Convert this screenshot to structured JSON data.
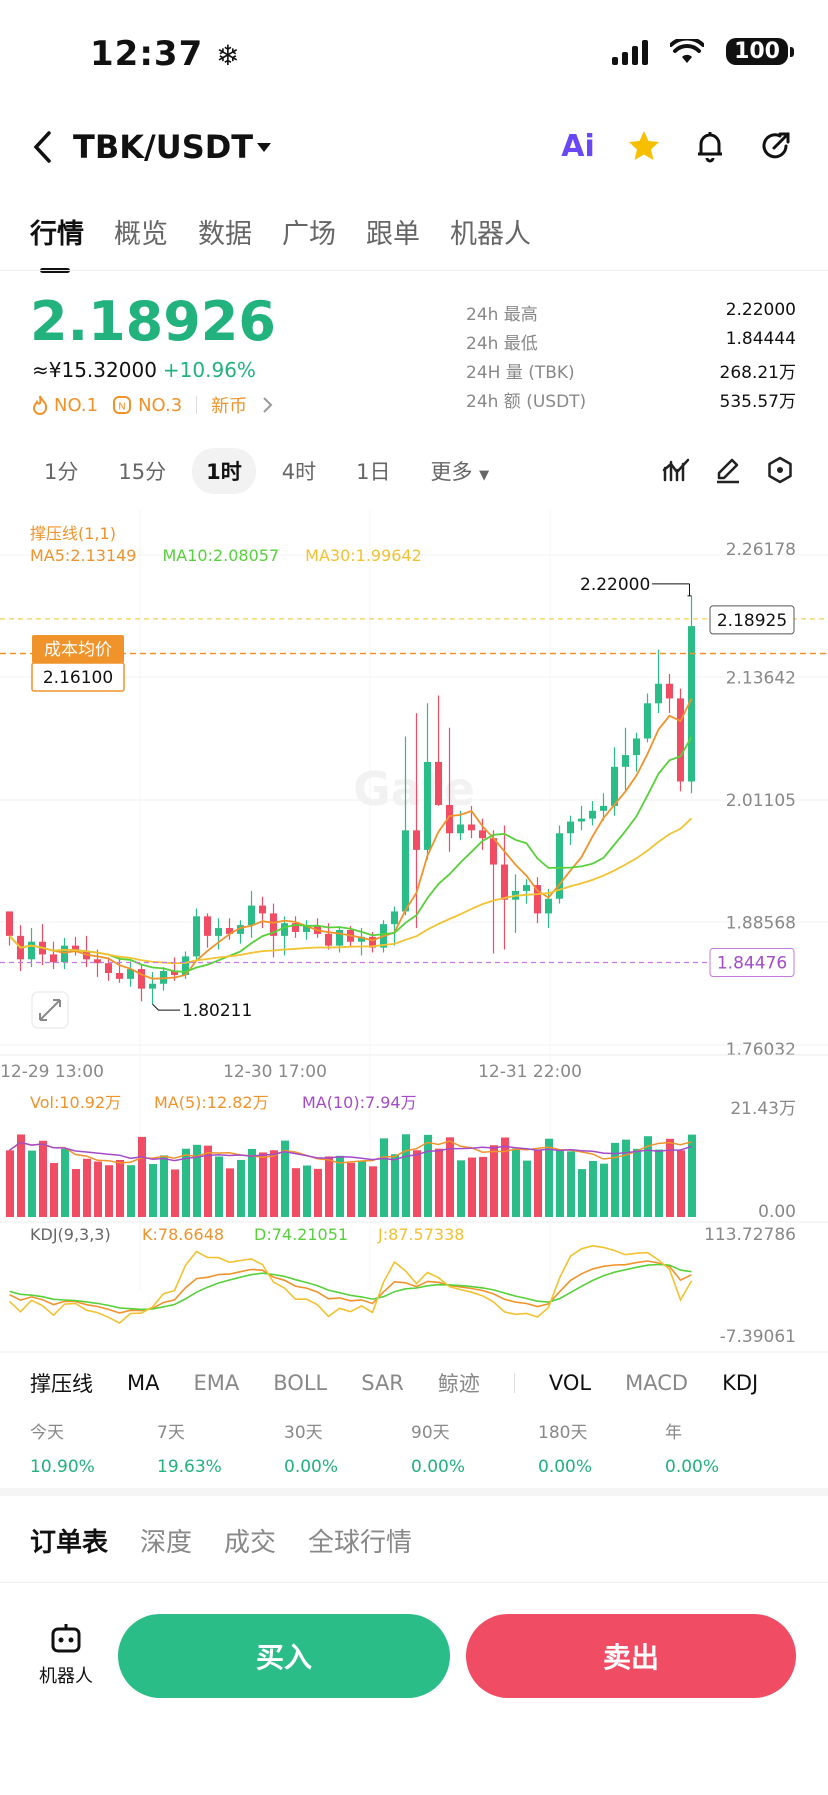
{
  "status_bar": {
    "time": "12:37",
    "battery": "100",
    "snow_icon": "snowflake-icon"
  },
  "header": {
    "pair": "TBK/USDT",
    "icons": [
      "back-icon",
      "ai-icon",
      "star-icon",
      "bell-icon",
      "share-icon"
    ],
    "ai_label": "Ai",
    "star_color": "#f6c000"
  },
  "top_tabs": [
    "行情",
    "概览",
    "数据",
    "广场",
    "跟单",
    "机器人"
  ],
  "price": {
    "last": "2.18926",
    "cny": "≈¥15.32000",
    "change": "+10.96%",
    "badges": [
      "NO.1",
      "NO.3",
      "新币"
    ],
    "color_up": "#21b27d"
  },
  "stats": [
    {
      "label": "24h  最高",
      "value": "2.22000"
    },
    {
      "label": "24h  最低",
      "value": "1.84444"
    },
    {
      "label": "24H  量 (TBK)",
      "value": "268.21万"
    },
    {
      "label": "24h  额 (USDT)",
      "value": "535.57万"
    }
  ],
  "intervals": [
    "1分",
    "15分",
    "1时",
    "4时",
    "1日",
    "更多"
  ],
  "chart_tools": [
    "indicator-icon",
    "draw-icon",
    "settings-icon"
  ],
  "chart": {
    "overlay_label": "撑压线(1,1)",
    "ma5": "MA5:2.13149",
    "ma10": "MA10:2.08057",
    "ma30": "MA30:1.99642",
    "cost_label": "成本均价",
    "cost_value": "2.16100",
    "high_marker": "2.22000",
    "low_marker": "1.80211",
    "current_price_tag": "2.18925",
    "support_tag": "1.84476",
    "y_ticks": [
      "2.26178",
      "2.13642",
      "2.01105",
      "1.88568",
      "1.76032"
    ],
    "x_ticks": [
      "12-29 13:00",
      "12-30 17:00",
      "12-31 22:00"
    ],
    "vol_legend": {
      "vol": "Vol:10.92万",
      "ma5": "MA(5):12.82万",
      "ma10": "MA(10):7.94万"
    },
    "vol_ticks": [
      "21.43万",
      "0.00"
    ],
    "kdj_legend": {
      "name": "KDJ(9,3,3)",
      "k": "K:78.6648",
      "d": "D:74.21051",
      "j": "J:87.57338"
    },
    "kdj_ticks": [
      "113.72786",
      "-7.39061"
    ],
    "watermark": "Gate"
  },
  "chart_data": {
    "type": "candlestick",
    "interval": "1时",
    "ohlc": [
      [
        1.897,
        1.897,
        1.862,
        1.872
      ],
      [
        1.872,
        1.883,
        1.836,
        1.848
      ],
      [
        1.848,
        1.88,
        1.84,
        1.866
      ],
      [
        1.866,
        1.884,
        1.842,
        1.853
      ],
      [
        1.853,
        1.866,
        1.838,
        1.845
      ],
      [
        1.845,
        1.87,
        1.838,
        1.862
      ],
      [
        1.862,
        1.871,
        1.852,
        1.856
      ],
      [
        1.856,
        1.872,
        1.84,
        1.848
      ],
      [
        1.848,
        1.858,
        1.83,
        1.844
      ],
      [
        1.844,
        1.85,
        1.826,
        1.834
      ],
      [
        1.834,
        1.85,
        1.824,
        1.828
      ],
      [
        1.828,
        1.846,
        1.82,
        1.838
      ],
      [
        1.838,
        1.842,
        1.805,
        1.818
      ],
      [
        1.818,
        1.835,
        1.802,
        1.823
      ],
      [
        1.823,
        1.84,
        1.816,
        1.836
      ],
      [
        1.836,
        1.85,
        1.826,
        1.832
      ],
      [
        1.832,
        1.856,
        1.828,
        1.851
      ],
      [
        1.851,
        1.9,
        1.846,
        1.892
      ],
      [
        1.892,
        1.895,
        1.86,
        1.872
      ],
      [
        1.872,
        1.89,
        1.858,
        1.88
      ],
      [
        1.88,
        1.89,
        1.868,
        1.874
      ],
      [
        1.874,
        1.888,
        1.864,
        1.883
      ],
      [
        1.883,
        1.918,
        1.87,
        1.903
      ],
      [
        1.903,
        1.912,
        1.88,
        1.895
      ],
      [
        1.895,
        1.905,
        1.85,
        1.872
      ],
      [
        1.872,
        1.892,
        1.852,
        1.885
      ],
      [
        1.885,
        1.892,
        1.87,
        1.876
      ],
      [
        1.876,
        1.888,
        1.868,
        1.882
      ],
      [
        1.882,
        1.89,
        1.87,
        1.874
      ],
      [
        1.874,
        1.885,
        1.858,
        1.862
      ],
      [
        1.862,
        1.882,
        1.855,
        1.878
      ],
      [
        1.878,
        1.882,
        1.86,
        1.866
      ],
      [
        1.866,
        1.88,
        1.852,
        1.871
      ],
      [
        1.871,
        1.876,
        1.855,
        1.86
      ],
      [
        1.86,
        1.888,
        1.855,
        1.884
      ],
      [
        1.884,
        1.902,
        1.862,
        1.897
      ],
      [
        1.897,
        2.076,
        1.893,
        1.98
      ],
      [
        1.98,
        2.1,
        1.88,
        1.96
      ],
      [
        1.96,
        2.11,
        1.95,
        2.05
      ],
      [
        2.05,
        2.118,
        2.005,
        2.006
      ],
      [
        2.006,
        2.085,
        1.958,
        1.977
      ],
      [
        1.977,
        2.0,
        1.97,
        1.986
      ],
      [
        1.986,
        2.005,
        1.972,
        1.98
      ],
      [
        1.98,
        1.992,
        1.96,
        1.972
      ],
      [
        1.972,
        1.98,
        1.854,
        1.945
      ],
      [
        1.945,
        1.985,
        1.858,
        1.909
      ],
      [
        1.909,
        1.935,
        1.875,
        1.918
      ],
      [
        1.918,
        1.93,
        1.905,
        1.924
      ],
      [
        1.924,
        1.932,
        1.885,
        1.895
      ],
      [
        1.895,
        1.92,
        1.88,
        1.91
      ],
      [
        1.91,
        1.985,
        1.905,
        1.977
      ],
      [
        1.977,
        1.995,
        1.965,
        1.989
      ],
      [
        1.989,
        2.005,
        1.98,
        1.992
      ],
      [
        1.992,
        2.01,
        1.985,
        2.0
      ],
      [
        2.0,
        2.018,
        1.99,
        2.005
      ],
      [
        2.005,
        2.065,
        1.995,
        2.045
      ],
      [
        2.045,
        2.085,
        2.02,
        2.057
      ],
      [
        2.057,
        2.08,
        2.04,
        2.074
      ],
      [
        2.074,
        2.12,
        2.07,
        2.11
      ],
      [
        2.11,
        2.165,
        2.1,
        2.13
      ],
      [
        2.13,
        2.14,
        2.1,
        2.115
      ],
      [
        2.115,
        2.125,
        2.02,
        2.03
      ],
      [
        2.03,
        2.22,
        2.018,
        2.189
      ]
    ],
    "ma_labels": [
      "MA5",
      "MA10",
      "MA30"
    ],
    "colors": {
      "up": "#2bbd87",
      "down": "#f04c64",
      "ma5": "#f0932b",
      "ma10": "#57d13b",
      "ma30": "#f2c230"
    }
  },
  "indicator_tabs": [
    "撑压线",
    "MA",
    "EMA",
    "BOLL",
    "SAR",
    "鲸迹",
    "VOL",
    "MACD",
    "KDJ"
  ],
  "performance": {
    "labels": [
      "今天",
      "7天",
      "30天",
      "90天",
      "180天",
      "年"
    ],
    "values": [
      "10.90%",
      "19.63%",
      "0.00%",
      "0.00%",
      "0.00%",
      "0.00%"
    ]
  },
  "bottom_tabs": [
    "订单表",
    "深度",
    "成交",
    "全球行情"
  ],
  "actions": {
    "robot": "机器人",
    "buy": "买入",
    "sell": "卖出"
  }
}
